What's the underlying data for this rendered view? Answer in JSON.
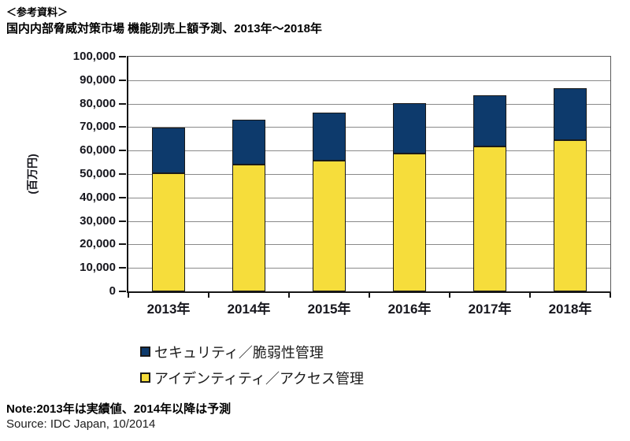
{
  "header": {
    "line1": "＜参考資料＞",
    "line2": "国内内部脅威対策市場 機能別売上額予測、2013年～2018年"
  },
  "chart_data": {
    "type": "bar",
    "stacked": true,
    "title": "国内内部脅威対策市場 機能別売上額予測、2013年～2018年",
    "ylabel": "(百万円)",
    "ylim": [
      0,
      100000
    ],
    "ytick_step": 10000,
    "ytick_labels": [
      "0",
      "10,000",
      "20,000",
      "30,000",
      "40,000",
      "50,000",
      "60,000",
      "70,000",
      "80,000",
      "90,000",
      "100,000"
    ],
    "categories": [
      "2013年",
      "2014年",
      "2015年",
      "2016年",
      "2017年",
      "2018年"
    ],
    "series": [
      {
        "key": "identity-access",
        "name": "アイデンティティ／アクセス管理",
        "color": "#f6dd3b",
        "values": [
          50300,
          53900,
          55800,
          58800,
          61700,
          64400
        ]
      },
      {
        "key": "security-vulnerability",
        "name": "セキュリティ／脆弱性管理",
        "color": "#0d3a6c",
        "values": [
          19400,
          19100,
          20500,
          21500,
          21700,
          22200
        ]
      }
    ],
    "totals": [
      69700,
      73000,
      76300,
      80300,
      83400,
      86600
    ],
    "grid": true,
    "legend_position": "below-left",
    "legend_order": [
      "security-vulnerability",
      "identity-access"
    ],
    "bar_border_color": "#1a1a1a",
    "gridline_color": "#8a8a8a"
  },
  "footer": {
    "note": "Note:2013年は実績値、2014年以降は予測",
    "source": "Source: IDC Japan, 10/2014"
  }
}
